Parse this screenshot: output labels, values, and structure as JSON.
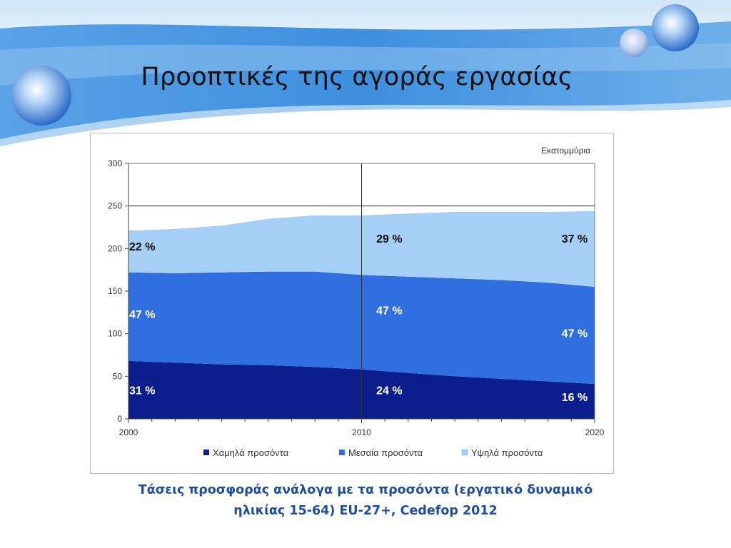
{
  "slide": {
    "title": "Προοπτικές της αγοράς εργασίας",
    "caption_line1": "Τάσεις προσφοράς ανάλογα με τα προσόντα (εργατικό δυναμικό",
    "caption_line2": "ηλικίας 15-64) EU-27+, Cedefop 2012"
  },
  "colors": {
    "low": "#0b1e8c",
    "medium": "#2f6fe0",
    "high": "#a6cff5",
    "banner": "#3d8fde",
    "caption": "#1f4e9c"
  },
  "chart_data": {
    "type": "area",
    "stacked": true,
    "unit_label": "Εκατομμύρια",
    "x": [
      2000,
      2002,
      2004,
      2006,
      2008,
      2010,
      2012,
      2014,
      2016,
      2018,
      2020
    ],
    "x_tick_labels": [
      "2000",
      "2010",
      "2020"
    ],
    "ylim": [
      0,
      300
    ],
    "y_ticks": [
      0,
      50,
      100,
      150,
      200,
      250,
      300
    ],
    "reference_lines": {
      "x": 2010,
      "y": 250
    },
    "series": [
      {
        "name": "Χαμηλά προσόντα",
        "color": "#0b1e8c",
        "values": [
          68,
          66,
          64,
          63,
          61,
          58,
          54,
          50,
          47,
          44,
          41
        ]
      },
      {
        "name": "Μεσαία προσόντα",
        "color": "#2f6fe0",
        "values": [
          104,
          105,
          108,
          110,
          112,
          111,
          113,
          115,
          116,
          116,
          114
        ]
      },
      {
        "name": "Υψηλά προσόντα",
        "color": "#a6cff5",
        "values": [
          49,
          52,
          55,
          62,
          66,
          70,
          74,
          78,
          80,
          83,
          89
        ]
      }
    ],
    "annotations": [
      {
        "text": "31 %",
        "x": 2000,
        "y": 34,
        "anchor": "start"
      },
      {
        "text": "47 %",
        "x": 2000,
        "y": 123,
        "anchor": "start"
      },
      {
        "text": "22 %",
        "x": 2000,
        "y": 203,
        "anchor": "start"
      },
      {
        "text": "24 %",
        "x": 2010.6,
        "y": 34,
        "anchor": "start"
      },
      {
        "text": "47 %",
        "x": 2010.6,
        "y": 128,
        "anchor": "start"
      },
      {
        "text": "29 %",
        "x": 2010.6,
        "y": 212,
        "anchor": "start"
      },
      {
        "text": "16 %",
        "x": 2019.7,
        "y": 26,
        "anchor": "end"
      },
      {
        "text": "47 %",
        "x": 2019.7,
        "y": 101,
        "anchor": "end"
      },
      {
        "text": "37 %",
        "x": 2019.7,
        "y": 212,
        "anchor": "end"
      }
    ],
    "legend_position": "bottom"
  }
}
